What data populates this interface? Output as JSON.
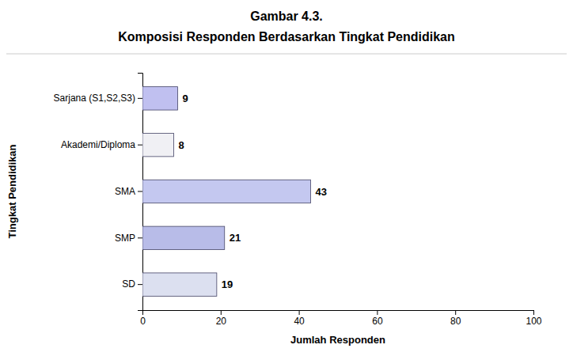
{
  "chart_data": {
    "type": "bar",
    "orientation": "horizontal",
    "title": "Gambar 4.3.",
    "subtitle": "Komposisi Responden Berdasarkan Tingkat Pendidikan",
    "categories": [
      "SD",
      "SMP",
      "SMA",
      "Akademi/Diploma",
      "Sarjana (S1,S2,S3)"
    ],
    "values": [
      19,
      21,
      43,
      8,
      9
    ],
    "colors": [
      "#dce0f0",
      "#b8bce8",
      "#c4c8f0",
      "#f0f0f4",
      "#c0c0f0"
    ],
    "xlabel": "Jumlah Responden",
    "ylabel": "Tingkat Pendidikan",
    "xlim": [
      0,
      100
    ],
    "xticks": [
      0,
      20,
      40,
      60,
      80,
      100
    ],
    "grid": false,
    "data_labels": true
  }
}
